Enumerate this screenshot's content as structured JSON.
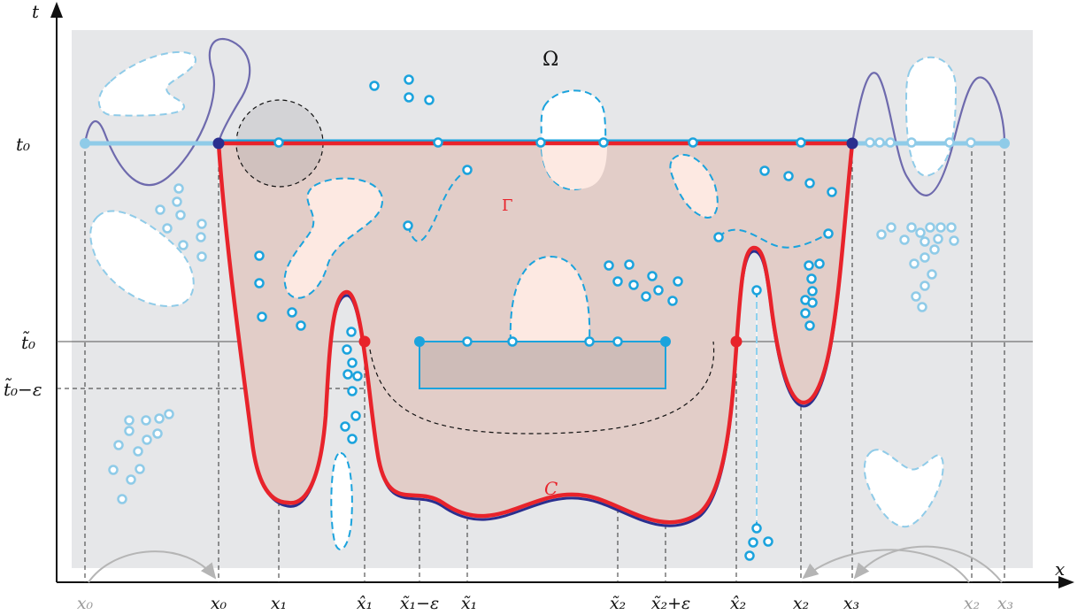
{
  "axes": {
    "x_label": "x",
    "t_label": "t"
  },
  "t_ticks": {
    "t0": "t₀",
    "t0_tilde": "t̃₀",
    "t0_tilde_minus_eps": "t̃₀−ε"
  },
  "x_ticks": [
    {
      "text": "x₀",
      "color": "#9a9a9a"
    },
    {
      "text": "x₀",
      "color": "#111111"
    },
    {
      "text": "x₁",
      "color": "#111111"
    },
    {
      "text": "x̂₁",
      "color": "#111111"
    },
    {
      "text": "x̃₁−ε",
      "color": "#111111"
    },
    {
      "text": "x̃₁",
      "color": "#111111"
    },
    {
      "text": "x̃₂",
      "color": "#111111"
    },
    {
      "text": "x̃₂+ε",
      "color": "#111111"
    },
    {
      "text": "x̂₂",
      "color": "#111111"
    },
    {
      "text": "x₂",
      "color": "#111111"
    },
    {
      "text": "x₃",
      "color": "#111111"
    },
    {
      "text": "x₂",
      "color": "#9a9a9a"
    },
    {
      "text": "x₃",
      "color": "#9a9a9a"
    }
  ],
  "region_labels": {
    "omega": "Ω",
    "gamma": "Γ",
    "curve": "C"
  },
  "colors": {
    "domain_fill": "#e6e7e9",
    "region_fill": "#e2cdc8",
    "red": "#e8232b",
    "navy": "#2a2f8f",
    "blue": "#1ba3dd",
    "light_blue": "#8fcbe8",
    "purple": "#6e6aad",
    "hole_fill": "#fde9e2"
  }
}
